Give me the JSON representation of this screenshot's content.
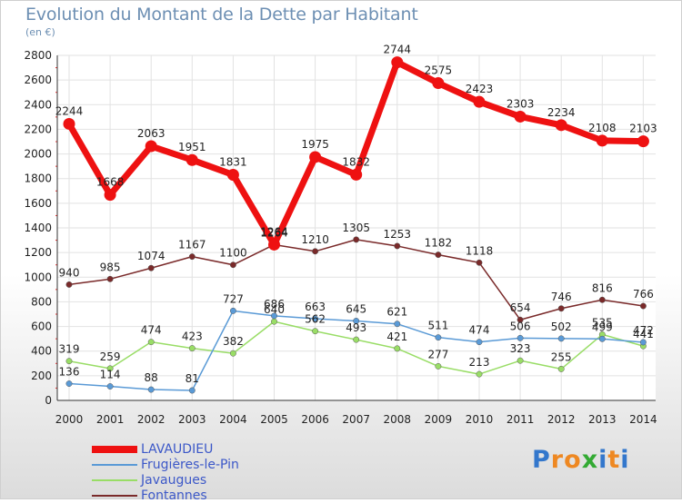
{
  "chart_data": {
    "type": "line",
    "title": "Evolution du Montant de la Dette par Habitant",
    "subtitle": "(en €)",
    "x": [
      "2000",
      "2001",
      "2002",
      "2003",
      "2004",
      "2005",
      "2006",
      "2007",
      "2008",
      "2009",
      "2010",
      "2011",
      "2012",
      "2013",
      "2014"
    ],
    "yticks": [
      0,
      200,
      400,
      600,
      800,
      1000,
      1200,
      1400,
      1600,
      1800,
      2000,
      2200,
      2400,
      2600,
      2800
    ],
    "ylim": [
      0,
      2800
    ],
    "grid": true,
    "legend_position": "bottom-left",
    "series": [
      {
        "name": "LAVAUDIEU",
        "color": "#ee1111",
        "values": [
          2244,
          1668,
          2063,
          1951,
          1831,
          1264,
          1975,
          1832,
          2744,
          2575,
          2423,
          2303,
          2234,
          2108,
          2103
        ]
      },
      {
        "name": "Frugières-le-Pin",
        "color": "#5a9ad6",
        "values": [
          136,
          114,
          88,
          81,
          727,
          686,
          663,
          645,
          621,
          511,
          474,
          506,
          502,
          499,
          472
        ]
      },
      {
        "name": "Javaugues",
        "color": "#99dd66",
        "values": [
          319,
          259,
          474,
          423,
          382,
          640,
          562,
          493,
          421,
          277,
          213,
          323,
          255,
          535,
          441
        ]
      },
      {
        "name": "Fontannes",
        "color": "#7a2a2a",
        "values": [
          940,
          985,
          1074,
          1167,
          1100,
          1264,
          1210,
          1305,
          1253,
          1182,
          1118,
          654,
          746,
          816,
          766
        ]
      }
    ]
  },
  "logo": {
    "text": "Proxiti",
    "letters": [
      "P",
      "r",
      "o",
      "x",
      "i",
      "t",
      "i"
    ],
    "colors": [
      "#3377cc",
      "#ee8822",
      "#ee8822",
      "#33aa33",
      "#3377cc",
      "#ee8822",
      "#3377cc"
    ]
  }
}
